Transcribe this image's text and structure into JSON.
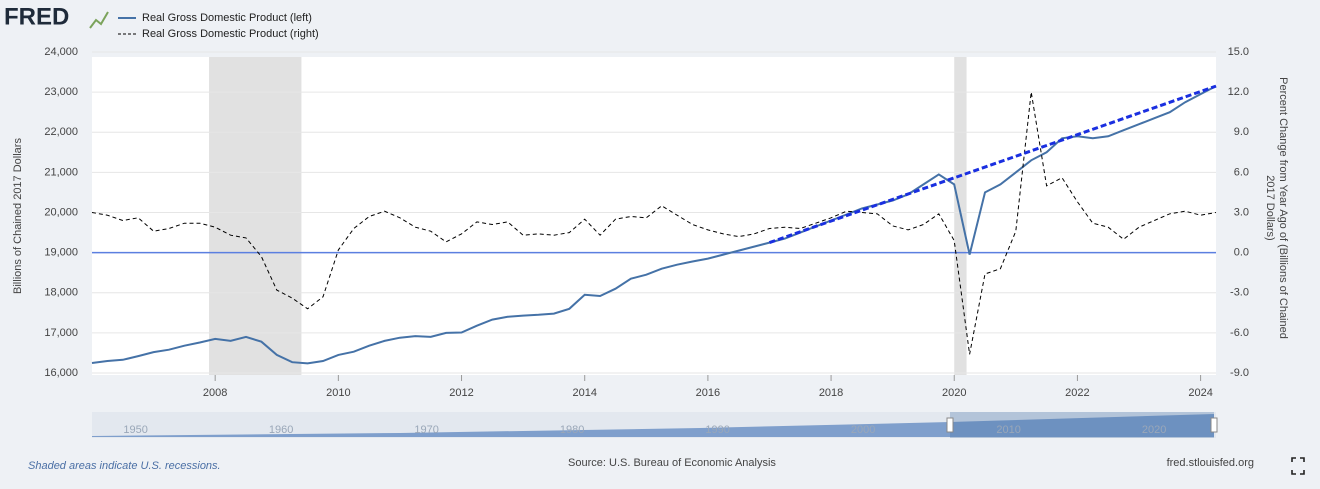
{
  "logo": "FRED",
  "chart_data": {
    "type": "line",
    "y_label": "Billions of Chained 2017 Dollars",
    "y2_label": [
      "Percent Change from Year Ago of (Billions of Chained",
      "2017 Dollars)"
    ],
    "x": [
      2006,
      2006.25,
      2006.5,
      2006.75,
      2007,
      2007.25,
      2007.5,
      2007.75,
      2008,
      2008.25,
      2008.5,
      2008.75,
      2009,
      2009.25,
      2009.5,
      2009.75,
      2010,
      2010.25,
      2010.5,
      2010.75,
      2011,
      2011.25,
      2011.5,
      2011.75,
      2012,
      2012.25,
      2012.5,
      2012.75,
      2013,
      2013.25,
      2013.5,
      2013.75,
      2014,
      2014.25,
      2014.5,
      2014.75,
      2015,
      2015.25,
      2015.5,
      2015.75,
      2016,
      2016.25,
      2016.5,
      2016.75,
      2017,
      2017.25,
      2017.5,
      2017.75,
      2018,
      2018.25,
      2018.5,
      2018.75,
      2019,
      2019.25,
      2019.5,
      2019.75,
      2020,
      2020.25,
      2020.5,
      2020.75,
      2021,
      2021.25,
      2021.5,
      2021.75,
      2022,
      2022.25,
      2022.5,
      2022.75,
      2023,
      2023.25,
      2023.5,
      2023.75,
      2024,
      2024.25
    ],
    "xlim": [
      2006,
      2024.25
    ],
    "xticks": [
      2008,
      2010,
      2012,
      2014,
      2016,
      2018,
      2020,
      2022,
      2024
    ],
    "ylim": [
      16000,
      24000
    ],
    "yticks": [
      {
        "value": 16000,
        "label": "16,000"
      },
      {
        "value": 17000,
        "label": "17,000"
      },
      {
        "value": 18000,
        "label": "18,000"
      },
      {
        "value": 19000,
        "label": "19,000"
      },
      {
        "value": 20000,
        "label": "20,000"
      },
      {
        "value": 21000,
        "label": "21,000"
      },
      {
        "value": 22000,
        "label": "22,000"
      },
      {
        "value": 23000,
        "label": "23,000"
      },
      {
        "value": 24000,
        "label": "24,000"
      }
    ],
    "y2lim": [
      -9,
      15
    ],
    "y2ticks": [
      {
        "value": -9,
        "label": "-9.0"
      },
      {
        "value": -6,
        "label": "-6.0"
      },
      {
        "value": -3,
        "label": "-3.0"
      },
      {
        "value": 0,
        "label": "0.0"
      },
      {
        "value": 3,
        "label": "3.0"
      },
      {
        "value": 6,
        "label": "6.0"
      },
      {
        "value": 9,
        "label": "9.0"
      },
      {
        "value": 12,
        "label": "12.0"
      },
      {
        "value": 15,
        "label": "15.0"
      }
    ],
    "grid": true,
    "series": [
      {
        "name": "Real Gross Domestic Product (left)",
        "color": "#4572a7",
        "dash": false,
        "values": [
          16250,
          16300,
          16330,
          16420,
          16520,
          16580,
          16680,
          16760,
          16850,
          16800,
          16900,
          16780,
          16450,
          16270,
          16240,
          16300,
          16450,
          16530,
          16680,
          16800,
          16880,
          16920,
          16900,
          17000,
          17010,
          17180,
          17330,
          17400,
          17430,
          17450,
          17480,
          17600,
          17950,
          17920,
          18100,
          18350,
          18450,
          18600,
          18700,
          18780,
          18850,
          18950,
          19050,
          19150,
          19250,
          19350,
          19500,
          19650,
          19800,
          19950,
          20100,
          20200,
          20300,
          20450,
          20700,
          20950,
          20700,
          18950,
          20500,
          20700,
          21000,
          21300,
          21500,
          21850,
          21900,
          21850,
          21900,
          22050,
          22200,
          22350,
          22500,
          22750,
          22950,
          23150
        ]
      },
      {
        "name": "Real Gross Domestic Product (right)",
        "color": "#000000",
        "dash": true,
        "axis": "y2",
        "values": [
          3.0,
          2.8,
          2.4,
          2.6,
          1.6,
          1.8,
          2.2,
          2.2,
          1.9,
          1.3,
          1.1,
          -0.3,
          -2.8,
          -3.4,
          -4.2,
          -3.3,
          0.2,
          1.8,
          2.7,
          3.1,
          2.6,
          1.9,
          1.6,
          0.8,
          1.4,
          2.3,
          2.1,
          2.3,
          1.3,
          1.4,
          1.3,
          1.5,
          2.5,
          1.3,
          2.5,
          2.7,
          2.6,
          3.5,
          2.8,
          2.1,
          1.7,
          1.4,
          1.2,
          1.4,
          1.8,
          1.9,
          1.8,
          2.2,
          2.6,
          3.1,
          3.0,
          2.9,
          2.0,
          1.7,
          2.1,
          2.9,
          0.9,
          -7.6,
          -1.6,
          -1.2,
          1.6,
          12.0,
          5.0,
          5.6,
          3.8,
          2.2,
          1.9,
          1.0,
          1.9,
          2.4,
          2.9,
          3.1,
          2.8,
          3.0
        ]
      }
    ],
    "trend_line": {
      "color": "#1a2fe0",
      "x": [
        2017,
        2024.25
      ],
      "values": [
        19250,
        23150
      ]
    },
    "recessions": [
      [
        2007.9,
        2009.4
      ],
      [
        2020.0,
        2020.2
      ]
    ],
    "navigator": {
      "xlim": [
        1947,
        2024.25
      ],
      "xticks": [
        1950,
        1960,
        1970,
        1980,
        1990,
        2000,
        2010,
        2020
      ]
    },
    "note": "Shaded areas indicate U.S. recessions.",
    "source": "Source: U.S. Bureau of Economic Analysis",
    "site": "fred.stlouisfed.org"
  }
}
